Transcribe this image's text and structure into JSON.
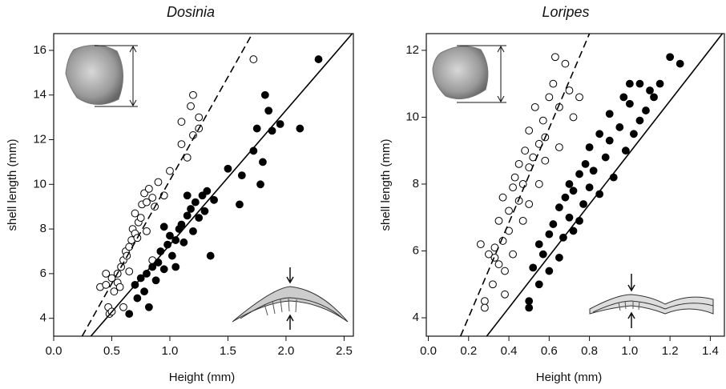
{
  "chart_data": [
    {
      "type": "scatter",
      "title": "Dosinia",
      "x_label": "Height (mm)",
      "y_label": "shell length (mm)",
      "xlim": [
        0,
        2.58
      ],
      "ylim": [
        3.2,
        16.75
      ],
      "xticks": [
        {
          "value": 0,
          "label": "0.0"
        },
        0.5,
        {
          "value": 1,
          "label": "1.0"
        },
        1.5,
        {
          "value": 2,
          "label": "2.0"
        },
        2.5
      ],
      "yticks": [
        4,
        6,
        8,
        10,
        12,
        14,
        16
      ],
      "grid": false,
      "series": [
        {
          "marker": "open",
          "color": "#000000",
          "x": [
            0.4,
            0.45,
            0.47,
            0.48,
            0.5,
            0.5,
            0.52,
            0.55,
            0.55,
            0.57,
            0.58,
            0.6,
            0.6,
            0.62,
            0.63,
            0.65,
            0.65,
            0.67,
            0.68,
            0.7,
            0.7,
            0.72,
            0.73,
            0.75,
            0.76,
            0.78,
            0.8,
            0.8,
            0.82,
            0.85,
            0.87,
            0.9,
            0.95,
            1.0,
            1.1,
            1.1,
            1.15,
            1.18,
            1.2,
            1.2,
            1.25,
            1.25,
            1.72,
            0.45,
            0.85
          ],
          "values": [
            5.4,
            5.5,
            4.5,
            4.2,
            5.8,
            4.3,
            5.2,
            6.0,
            5.6,
            5.4,
            6.3,
            4.5,
            6.6,
            7.0,
            6.8,
            7.2,
            6.1,
            7.5,
            8.0,
            7.8,
            8.7,
            7.6,
            8.3,
            8.5,
            9.1,
            9.6,
            9.2,
            7.9,
            9.8,
            9.4,
            9.0,
            10.1,
            9.5,
            10.6,
            11.8,
            12.8,
            11.2,
            13.5,
            14.0,
            12.2,
            12.5,
            13.0,
            15.6,
            6.0,
            6.6
          ]
        },
        {
          "marker": "filled",
          "color": "#000000",
          "x": [
            0.65,
            0.7,
            0.72,
            0.75,
            0.78,
            0.8,
            0.82,
            0.85,
            0.88,
            0.9,
            0.92,
            0.95,
            0.98,
            1.0,
            1.02,
            1.05,
            1.08,
            1.1,
            1.12,
            1.15,
            1.18,
            1.2,
            1.22,
            1.25,
            1.28,
            1.3,
            1.32,
            1.35,
            1.38,
            1.5,
            1.6,
            1.62,
            1.72,
            1.75,
            1.78,
            1.8,
            1.82,
            1.85,
            1.88,
            1.95,
            2.12,
            2.28,
            1.05,
            0.95,
            1.15
          ],
          "values": [
            4.2,
            5.5,
            4.9,
            5.8,
            5.2,
            6.0,
            4.5,
            6.3,
            5.7,
            6.5,
            7.0,
            6.2,
            7.3,
            7.7,
            6.8,
            7.5,
            8.0,
            8.2,
            7.4,
            8.6,
            8.9,
            7.9,
            9.2,
            8.5,
            9.5,
            8.8,
            9.7,
            6.8,
            9.3,
            10.7,
            9.1,
            10.4,
            11.5,
            12.5,
            10.0,
            11.0,
            14.0,
            13.3,
            12.4,
            12.7,
            12.5,
            15.6,
            6.3,
            8.1,
            9.5
          ]
        },
        {
          "line_style": "dashed",
          "color": "#000000",
          "x": [
            0.245,
            1.71
          ],
          "values": [
            3.2,
            16.75
          ]
        },
        {
          "line_style": "solid",
          "color": "#000000",
          "x": [
            0.32,
            2.57
          ],
          "values": [
            3.2,
            16.75
          ]
        }
      ]
    },
    {
      "type": "scatter",
      "title": "Loripes",
      "x_label": "Height (mm)",
      "y_label": "shell length (mm)",
      "xlim": [
        -0.01,
        1.47
      ],
      "ylim": [
        3.45,
        12.5
      ],
      "xticks": [
        {
          "value": 0,
          "label": "0.0"
        },
        0.2,
        0.4,
        0.6,
        0.8,
        {
          "value": 1,
          "label": "1.0"
        },
        1.2,
        1.4
      ],
      "yticks": [
        4,
        6,
        8,
        10,
        12
      ],
      "grid": false,
      "series": [
        {
          "marker": "open",
          "color": "#000000",
          "x": [
            0.26,
            0.28,
            0.28,
            0.3,
            0.32,
            0.33,
            0.35,
            0.35,
            0.37,
            0.37,
            0.38,
            0.4,
            0.4,
            0.42,
            0.42,
            0.43,
            0.45,
            0.45,
            0.47,
            0.48,
            0.5,
            0.5,
            0.5,
            0.52,
            0.53,
            0.55,
            0.55,
            0.57,
            0.58,
            0.6,
            0.62,
            0.63,
            0.65,
            0.65,
            0.68,
            0.7,
            0.72,
            0.75,
            0.38,
            0.33,
            0.47,
            0.58
          ],
          "values": [
            6.2,
            4.5,
            4.3,
            5.9,
            5.0,
            6.1,
            5.6,
            6.9,
            7.6,
            6.3,
            5.4,
            7.2,
            6.6,
            7.9,
            5.9,
            8.2,
            7.5,
            8.6,
            6.9,
            9.0,
            8.5,
            7.4,
            9.6,
            8.8,
            10.3,
            9.2,
            8.0,
            9.9,
            9.4,
            10.6,
            11.0,
            11.8,
            10.3,
            9.1,
            11.6,
            10.8,
            10.0,
            10.6,
            4.7,
            5.8,
            8.0,
            8.7
          ]
        },
        {
          "marker": "filled",
          "color": "#000000",
          "x": [
            0.5,
            0.5,
            0.52,
            0.55,
            0.57,
            0.6,
            0.6,
            0.62,
            0.65,
            0.65,
            0.67,
            0.68,
            0.7,
            0.7,
            0.72,
            0.72,
            0.75,
            0.77,
            0.78,
            0.8,
            0.8,
            0.82,
            0.85,
            0.85,
            0.88,
            0.9,
            0.9,
            0.92,
            0.95,
            0.97,
            0.98,
            1.0,
            1.0,
            1.02,
            1.05,
            1.05,
            1.08,
            1.1,
            1.12,
            1.15,
            1.2,
            1.25,
            0.55,
            0.75
          ],
          "values": [
            4.3,
            4.5,
            5.5,
            6.2,
            5.9,
            6.5,
            5.4,
            6.8,
            5.8,
            7.3,
            6.4,
            7.6,
            7.0,
            8.0,
            7.8,
            6.6,
            8.3,
            7.4,
            8.6,
            7.9,
            9.1,
            8.4,
            9.5,
            7.7,
            8.8,
            10.1,
            9.3,
            8.2,
            9.7,
            10.6,
            9.0,
            10.4,
            11.0,
            9.5,
            11.0,
            9.9,
            10.2,
            10.8,
            10.6,
            11.0,
            11.8,
            11.6,
            5.0,
            6.9
          ]
        },
        {
          "line_style": "dashed",
          "color": "#000000",
          "x": [
            0.16,
            0.8
          ],
          "values": [
            3.45,
            12.5
          ]
        },
        {
          "line_style": "solid",
          "color": "#000000",
          "x": [
            0.29,
            1.46
          ],
          "values": [
            3.45,
            12.5
          ]
        }
      ]
    }
  ]
}
